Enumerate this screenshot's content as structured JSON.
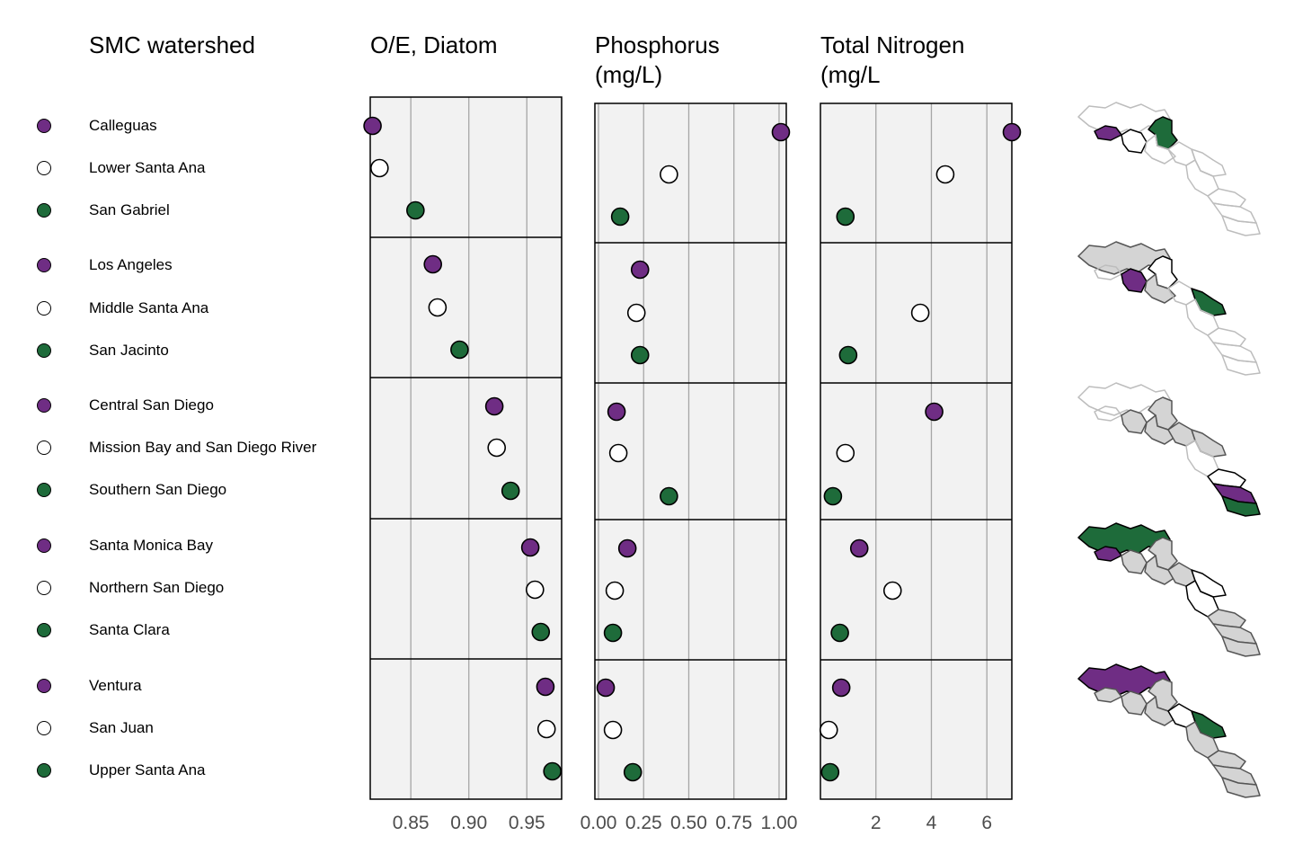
{
  "colors": {
    "purple": "#6f2d84",
    "white": "#ffffff",
    "green": "#1e6b3a",
    "panel_bg": "#f2f2f2",
    "grid": "#a6a6a6",
    "map_gray": "#d4d4d4",
    "map_outline": "#bdbdbd"
  },
  "chart_data": {
    "type": "scatter",
    "legend_title": "SMC watershed",
    "groups": [
      {
        "watersheds": [
          {
            "name": "Calleguas",
            "color": "purple",
            "oe_diatom": 0.817,
            "phosphorus": 1.01,
            "total_nitrogen": 6.9
          },
          {
            "name": "Lower Santa Ana",
            "color": "white",
            "oe_diatom": 0.823,
            "phosphorus": 0.39,
            "total_nitrogen": 4.5
          },
          {
            "name": "San Gabriel",
            "color": "green",
            "oe_diatom": 0.854,
            "phosphorus": 0.12,
            "total_nitrogen": 0.9
          }
        ]
      },
      {
        "watersheds": [
          {
            "name": "Los Angeles",
            "color": "purple",
            "oe_diatom": 0.869,
            "phosphorus": 0.23,
            "total_nitrogen": null
          },
          {
            "name": "Middle Santa Ana",
            "color": "white",
            "oe_diatom": 0.873,
            "phosphorus": 0.21,
            "total_nitrogen": 3.6
          },
          {
            "name": "San Jacinto",
            "color": "green",
            "oe_diatom": 0.892,
            "phosphorus": 0.23,
            "total_nitrogen": 1.0
          }
        ]
      },
      {
        "watersheds": [
          {
            "name": "Central San Diego",
            "color": "purple",
            "oe_diatom": 0.922,
            "phosphorus": 0.1,
            "total_nitrogen": 4.1
          },
          {
            "name": "Mission Bay and San Diego River",
            "color": "white",
            "oe_diatom": 0.924,
            "phosphorus": 0.11,
            "total_nitrogen": 0.9
          },
          {
            "name": "Southern San Diego",
            "color": "green",
            "oe_diatom": 0.936,
            "phosphorus": 0.39,
            "total_nitrogen": 0.45
          }
        ]
      },
      {
        "watersheds": [
          {
            "name": "Santa Monica Bay",
            "color": "purple",
            "oe_diatom": 0.953,
            "phosphorus": 0.16,
            "total_nitrogen": 1.4
          },
          {
            "name": "Northern San Diego",
            "color": "white",
            "oe_diatom": 0.957,
            "phosphorus": 0.09,
            "total_nitrogen": 2.6
          },
          {
            "name": "Santa Clara",
            "color": "green",
            "oe_diatom": 0.962,
            "phosphorus": 0.08,
            "total_nitrogen": 0.7
          }
        ]
      },
      {
        "watersheds": [
          {
            "name": "Ventura",
            "color": "purple",
            "oe_diatom": 0.966,
            "phosphorus": 0.04,
            "total_nitrogen": 0.75
          },
          {
            "name": "San Juan",
            "color": "white",
            "oe_diatom": 0.967,
            "phosphorus": 0.08,
            "total_nitrogen": 0.3
          },
          {
            "name": "Upper Santa Ana",
            "color": "green",
            "oe_diatom": 0.972,
            "phosphorus": 0.19,
            "total_nitrogen": 0.35
          }
        ]
      }
    ],
    "panels": [
      {
        "key": "oe_diatom",
        "title": "O/E, Diatom",
        "xlim": [
          0.815,
          0.98
        ],
        "ticks": [
          0.85,
          0.9,
          0.95
        ],
        "tick_labels": [
          "0.85",
          "0.90",
          "0.95"
        ],
        "grid": true
      },
      {
        "key": "phosphorus",
        "title": "Phosphorus\n(mg/L)",
        "xlim": [
          -0.02,
          1.04
        ],
        "ticks": [
          0,
          0.25,
          0.5,
          0.75,
          1.0
        ],
        "tick_labels": [
          "0.00",
          "0.25",
          "0.50",
          "0.75",
          "1.00"
        ],
        "grid": true
      },
      {
        "key": "total_nitrogen",
        "title": "Total Nitrogen\n(mg/L",
        "xlim": [
          0.0,
          6.9
        ],
        "ticks": [
          2,
          4,
          6
        ],
        "tick_labels": [
          "2",
          "4",
          "6"
        ],
        "grid": true
      }
    ],
    "maps": {
      "type": "choropleth",
      "count": 5,
      "highlight_colors": [
        "purple",
        "white",
        "green"
      ]
    }
  }
}
